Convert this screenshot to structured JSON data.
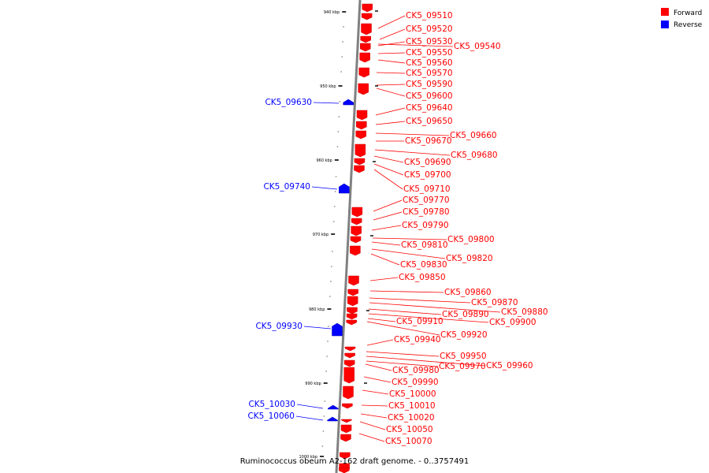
{
  "title": "Ruminococcus obeum A2-162 draft genome. - 0..3757491",
  "colors": {
    "forward": "#ff0000",
    "reverse": "#0000ff",
    "backbone": "#808080",
    "tick": "#000000"
  },
  "legend": [
    {
      "label": "Forward",
      "strand": "forward"
    },
    {
      "label": "Reverse",
      "strand": "reverse"
    }
  ],
  "ticks": [
    {
      "label": "940 kbp",
      "kbp": 940
    },
    {
      "label": "950 kbp",
      "kbp": 950
    },
    {
      "label": "960 kbp",
      "kbp": 960
    },
    {
      "label": "970 kbp",
      "kbp": 970
    },
    {
      "label": "980 kbp",
      "kbp": 980
    },
    {
      "label": "990 kbp",
      "kbp": 990
    },
    {
      "label": "1000 kbp",
      "kbp": 1000
    }
  ],
  "genes": [
    {
      "id": "CK5_09510",
      "strand": "forward"
    },
    {
      "id": "CK5_09520",
      "strand": "forward"
    },
    {
      "id": "CK5_09530",
      "strand": "forward"
    },
    {
      "id": "CK5_09540",
      "strand": "forward"
    },
    {
      "id": "CK5_09550",
      "strand": "forward"
    },
    {
      "id": "CK5_09560",
      "strand": "forward"
    },
    {
      "id": "CK5_09570",
      "strand": "forward"
    },
    {
      "id": "CK5_09590",
      "strand": "forward"
    },
    {
      "id": "CK5_09600",
      "strand": "forward"
    },
    {
      "id": "CK5_09630",
      "strand": "reverse"
    },
    {
      "id": "CK5_09640",
      "strand": "forward"
    },
    {
      "id": "CK5_09650",
      "strand": "forward"
    },
    {
      "id": "CK5_09660",
      "strand": "forward"
    },
    {
      "id": "CK5_09670",
      "strand": "forward"
    },
    {
      "id": "CK5_09680",
      "strand": "forward"
    },
    {
      "id": "CK5_09690",
      "strand": "forward"
    },
    {
      "id": "CK5_09700",
      "strand": "forward"
    },
    {
      "id": "CK5_09710",
      "strand": "forward"
    },
    {
      "id": "CK5_09740",
      "strand": "reverse"
    },
    {
      "id": "CK5_09770",
      "strand": "forward"
    },
    {
      "id": "CK5_09780",
      "strand": "forward"
    },
    {
      "id": "CK5_09790",
      "strand": "forward"
    },
    {
      "id": "CK5_09800",
      "strand": "forward"
    },
    {
      "id": "CK5_09810",
      "strand": "forward"
    },
    {
      "id": "CK5_09820",
      "strand": "forward"
    },
    {
      "id": "CK5_09830",
      "strand": "forward"
    },
    {
      "id": "CK5_09850",
      "strand": "forward"
    },
    {
      "id": "CK5_09860",
      "strand": "forward"
    },
    {
      "id": "CK5_09870",
      "strand": "forward"
    },
    {
      "id": "CK5_09880",
      "strand": "forward"
    },
    {
      "id": "CK5_09890",
      "strand": "forward"
    },
    {
      "id": "CK5_09900",
      "strand": "forward"
    },
    {
      "id": "CK5_09910",
      "strand": "forward"
    },
    {
      "id": "CK5_09920",
      "strand": "forward"
    },
    {
      "id": "CK5_09930",
      "strand": "reverse"
    },
    {
      "id": "CK5_09940",
      "strand": "forward"
    },
    {
      "id": "CK5_09950",
      "strand": "forward"
    },
    {
      "id": "CK5_09960",
      "strand": "forward"
    },
    {
      "id": "CK5_09970",
      "strand": "forward"
    },
    {
      "id": "CK5_09980",
      "strand": "forward"
    },
    {
      "id": "CK5_09990",
      "strand": "forward"
    },
    {
      "id": "CK5_10000",
      "strand": "forward"
    },
    {
      "id": "CK5_10010",
      "strand": "forward"
    },
    {
      "id": "CK5_10020",
      "strand": "forward"
    },
    {
      "id": "CK5_10030",
      "strand": "reverse"
    },
    {
      "id": "CK5_10050",
      "strand": "forward"
    },
    {
      "id": "CK5_10060",
      "strand": "reverse"
    },
    {
      "id": "CK5_10070",
      "strand": "forward"
    }
  ]
}
